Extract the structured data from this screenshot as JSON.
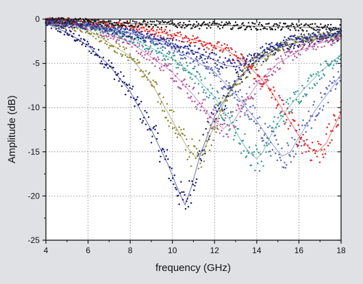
{
  "chart_data": {
    "type": "scatter",
    "title": "",
    "xlabel": "frequency (GHz)",
    "ylabel": "Amplitude (dB)",
    "xlim": [
      4,
      18
    ],
    "ylim": [
      -25,
      0
    ],
    "x_ticks": [
      4,
      6,
      8,
      10,
      12,
      14,
      16,
      18
    ],
    "y_ticks": [
      0,
      -5,
      -10,
      -15,
      -20,
      -25
    ],
    "x_tick_labels": [
      "4",
      "6",
      "8",
      "10",
      "12",
      "14",
      "16",
      "18"
    ],
    "y_tick_labels": [
      "0",
      "-5",
      "-10",
      "-15",
      "-20",
      "-25"
    ],
    "grid": true,
    "legend": "none",
    "series": [
      {
        "color": "#1c1f78",
        "x": [
          4.0,
          5.0,
          6.0,
          7.0,
          8.0,
          9.0,
          9.8,
          10.3,
          10.6,
          10.9,
          11.3,
          12.0,
          13.0,
          14.0,
          15.0,
          16.0,
          17.0,
          18.0
        ],
        "y": [
          -0.5,
          -1.5,
          -3.0,
          -5.2,
          -8.2,
          -12.5,
          -16.5,
          -19.5,
          -21.0,
          -19.0,
          -15.5,
          -11.0,
          -7.0,
          -4.6,
          -3.3,
          -2.6,
          -2.2,
          -1.9
        ]
      },
      {
        "color": "#8b8a3a",
        "x": [
          4.0,
          6.0,
          8.0,
          9.0,
          10.0,
          10.7,
          11.1,
          11.5,
          12.0,
          12.5,
          13.0,
          14.0,
          15.0,
          16.0,
          17.0,
          18.0
        ],
        "y": [
          -0.3,
          -1.2,
          -4.2,
          -7.2,
          -11.5,
          -14.5,
          -15.6,
          -14.8,
          -12.0,
          -9.2,
          -7.2,
          -4.8,
          -3.3,
          -2.5,
          -2.1,
          -1.8
        ]
      },
      {
        "color": "#b35a9e",
        "x": [
          4.0,
          6.0,
          8.0,
          10.0,
          11.0,
          11.8,
          12.4,
          12.9,
          13.4,
          14.0,
          15.0,
          16.0,
          17.0,
          18.0
        ],
        "y": [
          -0.2,
          -0.8,
          -2.6,
          -6.0,
          -8.6,
          -11.0,
          -12.4,
          -11.6,
          -9.6,
          -7.4,
          -5.0,
          -3.6,
          -2.7,
          -2.2
        ]
      },
      {
        "color": "#3c9a96",
        "x": [
          4.0,
          6.0,
          8.0,
          10.0,
          11.0,
          12.0,
          12.7,
          13.2,
          13.6,
          14.0,
          14.3,
          14.8,
          15.5,
          16.2,
          17.0,
          18.0
        ],
        "y": [
          -0.2,
          -0.7,
          -2.0,
          -4.5,
          -6.3,
          -8.8,
          -11.3,
          -13.5,
          -15.0,
          -15.8,
          -15.0,
          -12.5,
          -10.0,
          -8.0,
          -6.0,
          -4.0
        ]
      },
      {
        "color": "#5d68b9",
        "x": [
          4.0,
          6.0,
          8.0,
          10.0,
          12.0,
          13.0,
          14.0,
          14.7,
          15.2,
          15.6,
          16.1,
          16.8,
          17.5,
          18.0
        ],
        "y": [
          -0.2,
          -0.6,
          -1.5,
          -3.2,
          -6.0,
          -8.5,
          -11.5,
          -14.0,
          -15.5,
          -15.0,
          -13.0,
          -10.2,
          -8.0,
          -6.2
        ]
      },
      {
        "color": "#dc2a2a",
        "x": [
          4.0,
          6.0,
          8.0,
          10.0,
          11.5,
          12.5,
          13.5,
          14.5,
          15.3,
          16.0,
          16.5,
          16.9,
          17.3,
          17.7,
          18.0
        ],
        "y": [
          -0.1,
          -0.3,
          -0.8,
          -1.8,
          -2.6,
          -3.4,
          -5.0,
          -7.5,
          -10.5,
          -13.2,
          -14.6,
          -15.0,
          -14.0,
          -12.0,
          -10.5
        ]
      },
      {
        "color": "#1a1a1a",
        "x": [
          4.0,
          6.0,
          8.0,
          10.0,
          12.0,
          14.0,
          16.0,
          18.0
        ],
        "y": [
          -0.1,
          -0.3,
          -0.5,
          -0.6,
          -0.7,
          -0.8,
          -0.9,
          -1.0
        ]
      },
      {
        "color": "#2a2f8c",
        "x": [
          4.0,
          6.0,
          8.0,
          10.0,
          11.0,
          11.8,
          12.5,
          13.0,
          13.6,
          14.5,
          15.5,
          16.5,
          17.5,
          18.0
        ],
        "y": [
          -0.3,
          -0.8,
          -1.6,
          -2.8,
          -3.6,
          -4.4,
          -5.2,
          -5.4,
          -4.8,
          -3.3,
          -2.4,
          -2.0,
          -1.7,
          -1.6
        ]
      }
    ]
  }
}
